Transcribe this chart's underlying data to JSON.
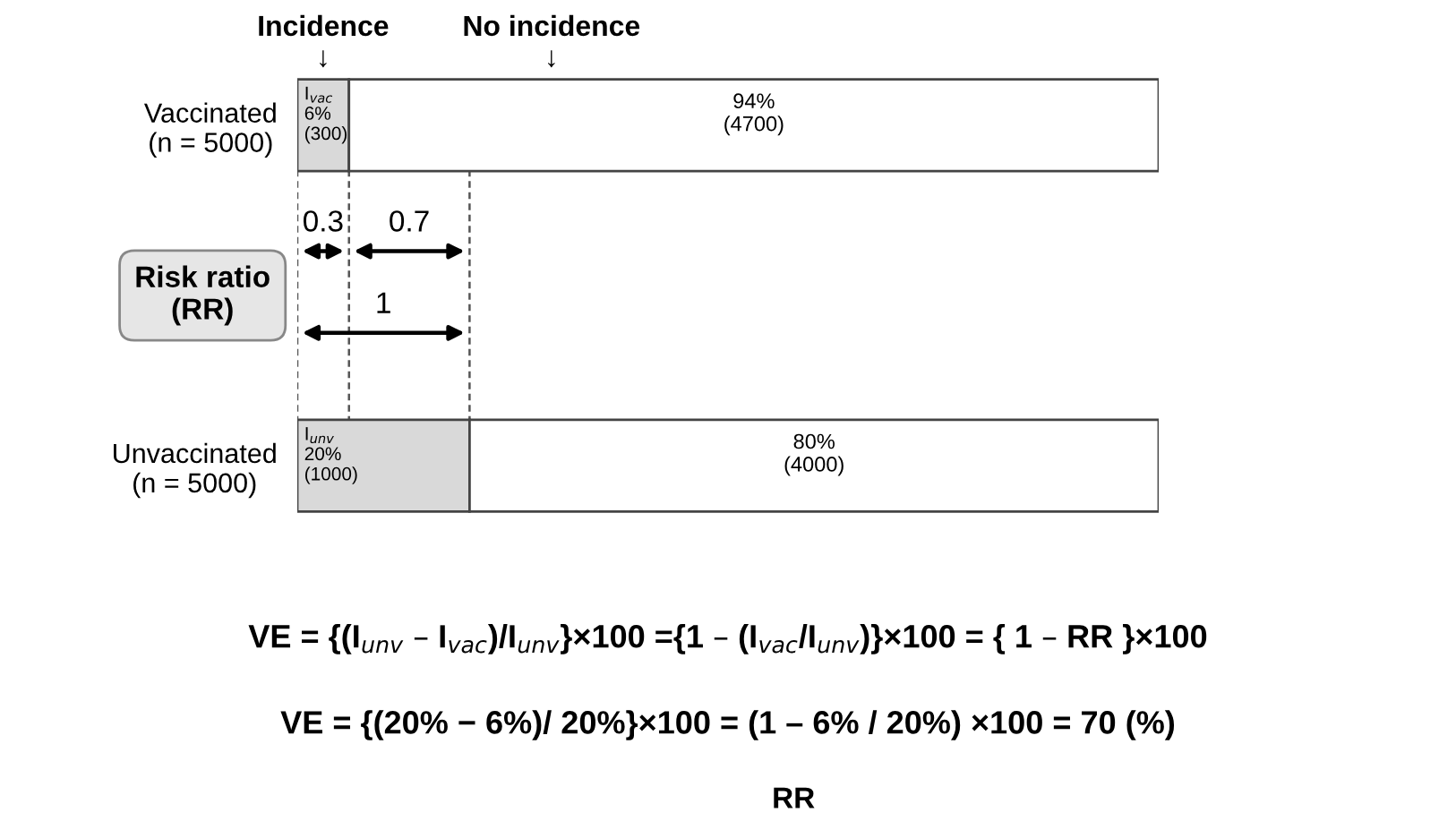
{
  "chart_data": {
    "type": "bar",
    "orientation": "horizontal",
    "stacked": true,
    "categories": [
      "Vaccinated\n(n = 5000)",
      "Unvaccinated\n(n = 5000)"
    ],
    "series": [
      {
        "color": "#d9d9d9",
        "values": [
          6,
          20
        ],
        "value_labels": [
          "I$_{vac}$\n6%\n(300)",
          "I$_{unv}$\n20%\n(1000)"
        ]
      },
      {
        "color": "#ffffff",
        "values": [
          94,
          80
        ],
        "value_labels": [
          "94%\n(4700)",
          "80%\n(4000)"
        ]
      }
    ],
    "tick_labels": "y",
    "ref_lines": [
      {
        "axis": "x",
        "value": 0,
        "line_style": "dashed",
        "color": "#555555"
      },
      {
        "axis": "x",
        "value": 6,
        "line_style": "dashed",
        "color": "#555555"
      },
      {
        "axis": "x",
        "value": 20,
        "line_style": "dashed",
        "color": "#555555"
      }
    ],
    "annotations": [
      "Risk ratio\n(RR)",
      "0.3",
      "0.7",
      "1",
      "VE = {(I$_{unv}$ – I$_{vac}$)/I$_{unv}$}×100 ={1 – (I$_{vac}$/I$_{unv}$)}×100 = { 1 – RR }×100",
      "VE = {(20% − 6%)/ 20%}×100 = (1 – 6% / 20%) ×100 = 70 (%)",
      "RR",
      "Incidence\n↓",
      "No incidence\n↓"
    ]
  }
}
